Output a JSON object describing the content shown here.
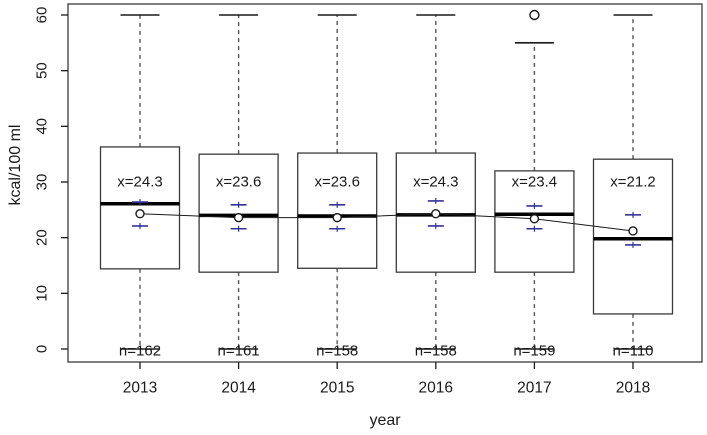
{
  "chart_data": {
    "type": "boxplot",
    "title": "",
    "xlabel": "year",
    "ylabel": "kcal/100 ml",
    "ylim": [
      0,
      60
    ],
    "yticks": [
      0,
      10,
      20,
      30,
      40,
      50,
      60
    ],
    "categories": [
      "2013",
      "2014",
      "2015",
      "2016",
      "2017",
      "2018"
    ],
    "grid": false,
    "legend": "none",
    "colors": {
      "background": "#ffffff",
      "box_border": "#3a3a3a",
      "box_fill": "#ffffff",
      "median": "#000000",
      "whisker": "#555555",
      "staple": "#1a1a1a",
      "ci_marker": "#32329b",
      "mean_line": "#1a1a1a",
      "mean_point_stroke": "#1a1a1a",
      "text": "#1a1a1a"
    },
    "mean_label_y": 30,
    "boxes": [
      {
        "year": "2013",
        "n": 162,
        "n_label": "n=162",
        "mean": 24.3,
        "mean_label": "x=24.3",
        "median": 26.1,
        "q1": 14.4,
        "q3": 36.3,
        "whisker_low": 0,
        "whisker_high": 60,
        "ci_low": 22.1,
        "ci_high": 26.4,
        "outliers": []
      },
      {
        "year": "2014",
        "n": 161,
        "n_label": "n=161",
        "mean": 23.6,
        "mean_label": "x=23.6",
        "median": 24.0,
        "q1": 13.8,
        "q3": 35.0,
        "whisker_low": 0,
        "whisker_high": 60,
        "ci_low": 21.6,
        "ci_high": 25.9,
        "outliers": []
      },
      {
        "year": "2015",
        "n": 158,
        "n_label": "n=158",
        "mean": 23.6,
        "mean_label": "x=23.6",
        "median": 23.9,
        "q1": 14.5,
        "q3": 35.2,
        "whisker_low": 0,
        "whisker_high": 60,
        "ci_low": 21.6,
        "ci_high": 25.9,
        "outliers": []
      },
      {
        "year": "2016",
        "n": 158,
        "n_label": "n=158",
        "mean": 24.3,
        "mean_label": "x=24.3",
        "median": 24.1,
        "q1": 13.8,
        "q3": 35.2,
        "whisker_low": 0,
        "whisker_high": 60,
        "ci_low": 22.1,
        "ci_high": 26.6,
        "outliers": []
      },
      {
        "year": "2017",
        "n": 159,
        "n_label": "n=159",
        "mean": 23.4,
        "mean_label": "x=23.4",
        "median": 24.2,
        "q1": 13.8,
        "q3": 32.0,
        "whisker_low": 0,
        "whisker_high": 55,
        "ci_low": 21.6,
        "ci_high": 25.7,
        "outliers": [
          60
        ]
      },
      {
        "year": "2018",
        "n": 110,
        "n_label": "n=110",
        "mean": 21.2,
        "mean_label": "x=21.2",
        "median": 19.8,
        "q1": 6.3,
        "q3": 34.1,
        "whisker_low": 0,
        "whisker_high": 60,
        "ci_low": 18.7,
        "ci_high": 24.1,
        "outliers": []
      }
    ]
  }
}
